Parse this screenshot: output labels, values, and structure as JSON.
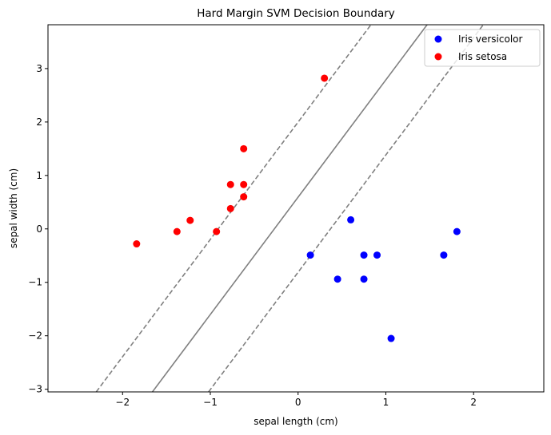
{
  "chart_data": {
    "type": "scatter",
    "title": "Hard Margin SVM Decision Boundary",
    "xlabel": "sepal length (cm)",
    "ylabel": "sepal width (cm)",
    "xlim": [
      -2.85,
      2.8
    ],
    "ylim": [
      -3.05,
      3.82
    ],
    "xticks": [
      -2,
      -1,
      0,
      1,
      2
    ],
    "yticks": [
      -3,
      -2,
      -1,
      0,
      1,
      2,
      3
    ],
    "grid": false,
    "legend_position": "top-right",
    "series": [
      {
        "name": "Iris versicolor",
        "color": "#0000ff",
        "points": [
          [
            0.6,
            0.17
          ],
          [
            1.81,
            -0.05
          ],
          [
            0.14,
            -0.49
          ],
          [
            0.75,
            -0.49
          ],
          [
            0.9,
            -0.49
          ],
          [
            1.66,
            -0.49
          ],
          [
            0.45,
            -0.94
          ],
          [
            0.75,
            -0.94
          ],
          [
            1.06,
            -2.05
          ]
        ]
      },
      {
        "name": "Iris setosa",
        "color": "#ff0000",
        "points": [
          [
            0.3,
            2.82
          ],
          [
            -0.62,
            1.5
          ],
          [
            -0.77,
            0.83
          ],
          [
            -0.62,
            0.83
          ],
          [
            -0.62,
            0.6
          ],
          [
            -0.77,
            0.38
          ],
          [
            -1.23,
            0.16
          ],
          [
            -1.38,
            -0.05
          ],
          [
            -0.93,
            -0.05
          ],
          [
            -1.84,
            -0.28
          ]
        ]
      }
    ],
    "lines": [
      {
        "role": "decision-boundary",
        "style": "solid",
        "color": "#808080",
        "points": [
          [
            -1.66,
            -3.05
          ],
          [
            1.47,
            3.82
          ]
        ]
      },
      {
        "role": "margin-upper",
        "style": "dashed",
        "color": "#808080",
        "points": [
          [
            -2.3,
            -3.05
          ],
          [
            0.83,
            3.82
          ]
        ]
      },
      {
        "role": "margin-lower",
        "style": "dashed",
        "color": "#808080",
        "points": [
          [
            -1.02,
            -3.05
          ],
          [
            2.11,
            3.82
          ]
        ]
      }
    ]
  }
}
